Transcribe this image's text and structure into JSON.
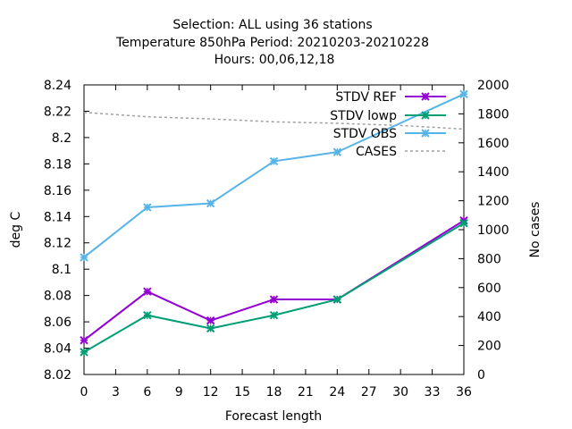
{
  "chart_data": {
    "type": "line",
    "title_lines": [
      "Selection: ALL using     36 stations",
      "Temperature 850hPa   Period: 20210203-20210228",
      "Hours:  00,06,12,18"
    ],
    "xlabel": "Forecast length",
    "ylabel": "deg C",
    "y2label": "No cases",
    "xlim": [
      0,
      36
    ],
    "ylim": [
      8.02,
      8.24
    ],
    "y2lim": [
      0,
      2000
    ],
    "x_ticks": [
      "0",
      "3",
      "6",
      "9",
      "12",
      "15",
      "18",
      "21",
      "24",
      "27",
      "30",
      "33",
      "36"
    ],
    "y_ticks": [
      "8.02",
      "8.04",
      "8.06",
      "8.08",
      "8.1",
      "8.12",
      "8.14",
      "8.16",
      "8.18",
      "8.2",
      "8.22",
      "8.24"
    ],
    "y2_ticks": [
      "0",
      "200",
      "400",
      "600",
      "800",
      "1000",
      "1200",
      "1400",
      "1600",
      "1800",
      "2000"
    ],
    "grid": false,
    "legend_position": "top-right",
    "series": [
      {
        "name": "STDV REF",
        "axis": "y1",
        "color": "#9400d3",
        "marker": "x",
        "x": [
          0,
          6,
          12,
          18,
          24,
          36
        ],
        "values": [
          8.046,
          8.083,
          8.061,
          8.077,
          8.077,
          8.137
        ]
      },
      {
        "name": "STDV lowp",
        "axis": "y1",
        "color": "#009e73",
        "marker": "x",
        "x": [
          0,
          6,
          12,
          18,
          24,
          36
        ],
        "values": [
          8.037,
          8.065,
          8.055,
          8.065,
          8.077,
          8.135
        ]
      },
      {
        "name": "STDV OBS",
        "axis": "y1",
        "color": "#56b4e9",
        "marker": "x",
        "x": [
          0,
          6,
          12,
          18,
          24,
          36
        ],
        "values": [
          8.109,
          8.147,
          8.15,
          8.182,
          8.189,
          8.233
        ]
      },
      {
        "name": "CASES",
        "axis": "y2",
        "color": "#a0a0a0",
        "dashed": true,
        "x": [
          0,
          6,
          12,
          18,
          24,
          30,
          36
        ],
        "values": [
          1810,
          1780,
          1765,
          1745,
          1735,
          1720,
          1695
        ]
      }
    ]
  }
}
